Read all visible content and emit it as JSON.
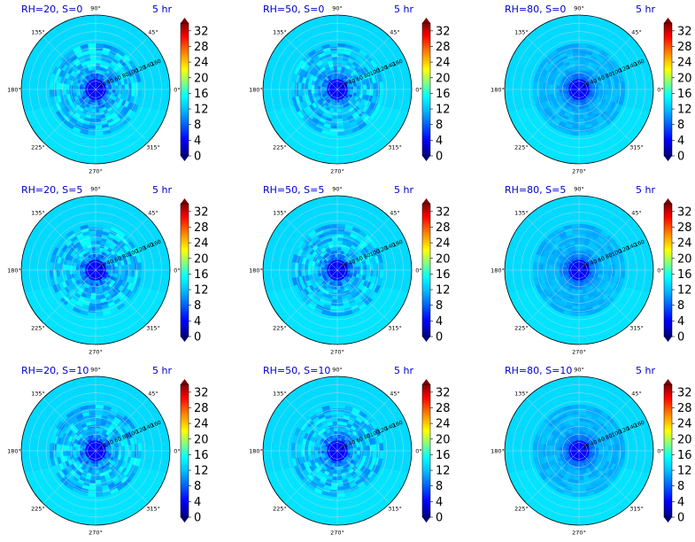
{
  "chart_data": {
    "type": "polar-heatmap",
    "grid": true,
    "angular_ticks": [
      "0°",
      "45°",
      "90°",
      "135°",
      "180°",
      "225°",
      "270°",
      "315°"
    ],
    "radial_ticks": [
      20,
      40,
      60,
      80,
      100,
      120,
      140,
      160
    ],
    "colorbar": {
      "ticks": [
        0,
        4,
        8,
        12,
        16,
        20,
        24,
        28,
        32
      ],
      "range": [
        0,
        34
      ],
      "colormap": [
        "#00007f",
        "#0000ff",
        "#007fff",
        "#00ffff",
        "#7fff7f",
        "#ffff00",
        "#ff7f00",
        "#ff0000",
        "#7f0000"
      ],
      "extend": "both"
    },
    "panels": [
      {
        "title": "RH=20, S=0",
        "time": "5 hr",
        "inner_level": 5,
        "mid_level": 10.5,
        "outer_level": 11.5,
        "noise": 0.9
      },
      {
        "title": "RH=50, S=0",
        "time": "5 hr",
        "inner_level": 5,
        "mid_level": 10.5,
        "outer_level": 11.5,
        "noise": 0.8
      },
      {
        "title": "RH=80, S=0",
        "time": "5 hr",
        "inner_level": 5,
        "mid_level": 10.2,
        "outer_level": 11.5,
        "noise": 0.3
      },
      {
        "title": "RH=20, S=5",
        "time": "5 hr",
        "inner_level": 5,
        "mid_level": 10.5,
        "outer_level": 11.5,
        "noise": 0.9
      },
      {
        "title": "RH=50, S=5",
        "time": "5 hr",
        "inner_level": 5,
        "mid_level": 10.5,
        "outer_level": 11.5,
        "noise": 0.8
      },
      {
        "title": "RH=80, S=5",
        "time": "5 hr",
        "inner_level": 5,
        "mid_level": 10.2,
        "outer_level": 11.5,
        "noise": 0.3
      },
      {
        "title": "RH=20, S=10",
        "time": "5 hr",
        "inner_level": 5,
        "mid_level": 10.5,
        "outer_level": 11.5,
        "noise": 0.9
      },
      {
        "title": "RH=50, S=10",
        "time": "5 hr",
        "inner_level": 5,
        "mid_level": 10.5,
        "outer_level": 11.5,
        "noise": 0.8
      },
      {
        "title": "RH=80, S=10",
        "time": "5 hr",
        "inner_level": 5,
        "mid_level": 10.2,
        "outer_level": 11.5,
        "noise": 0.3
      }
    ]
  }
}
